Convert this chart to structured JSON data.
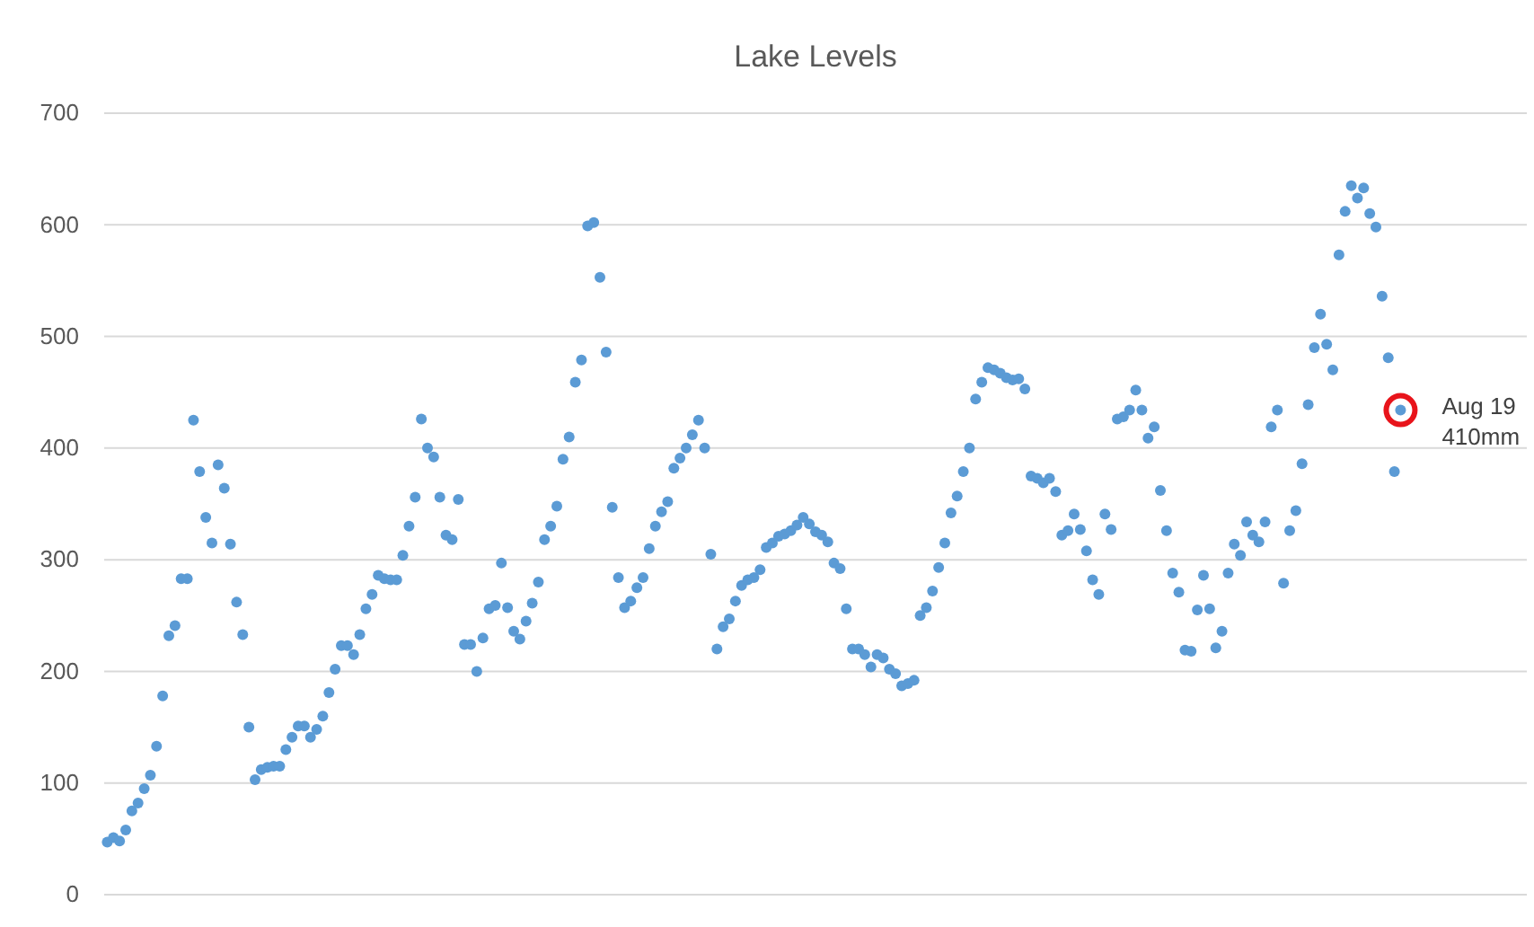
{
  "chart_data": {
    "type": "scatter",
    "title": "Lake Levels",
    "marker": "circle",
    "grid": "y",
    "tick_labels": "y",
    "categories": [
      null,
      null,
      null,
      null,
      null,
      null,
      null,
      null,
      null,
      null,
      null,
      null,
      null,
      null,
      null,
      null,
      null,
      null,
      null,
      null,
      null,
      null,
      null,
      null,
      null,
      null,
      null,
      null,
      null,
      null,
      null,
      null,
      null,
      null,
      null,
      null,
      null,
      null,
      null,
      null,
      null,
      null,
      null,
      null,
      null,
      null,
      null,
      null,
      null,
      null,
      null,
      null,
      null,
      null,
      null,
      null,
      null,
      null,
      null,
      null,
      null,
      null,
      null,
      null,
      null,
      null,
      null,
      null,
      null,
      null,
      null,
      null,
      null,
      null,
      null,
      null,
      null,
      null,
      null,
      null,
      null,
      null,
      null,
      null,
      null,
      null,
      null,
      null,
      null,
      null,
      null,
      null,
      null,
      null,
      null,
      null,
      null,
      null,
      null,
      null,
      null,
      null,
      null,
      null,
      null,
      null,
      null,
      null,
      null,
      null,
      null,
      null,
      null,
      null,
      null,
      null,
      null,
      null,
      null,
      null,
      null,
      null,
      null,
      null,
      null,
      null,
      null,
      null,
      null,
      null,
      null,
      null,
      null,
      null,
      null,
      null,
      null,
      null,
      null,
      null,
      null,
      null,
      null,
      null,
      null,
      null,
      null,
      null,
      null,
      null,
      null,
      null,
      null,
      null,
      null,
      null,
      null,
      null,
      null,
      null,
      null,
      null,
      null,
      null,
      null,
      null,
      null,
      null,
      null,
      null,
      null,
      null,
      null,
      null,
      null,
      null,
      null,
      null,
      null,
      null,
      null,
      null,
      null,
      null,
      null,
      null,
      null,
      null,
      null,
      null,
      null,
      null,
      null,
      null,
      null,
      null,
      null,
      null,
      null,
      null,
      null,
      null,
      null,
      null,
      null,
      null,
      null,
      null,
      null,
      null,
      null,
      null,
      null,
      null,
      null,
      null,
      null,
      null,
      null,
      null,
      null,
      null,
      null,
      null,
      null,
      null,
      null,
      null,
      null,
      null,
      null
    ],
    "ylim": [
      0,
      700
    ],
    "yticks": [
      0,
      100,
      200,
      300,
      400,
      500,
      600,
      700
    ],
    "annotations": [
      "Aug 19\n410mm"
    ],
    "series": [
      {
        "color": "#5b9bd5",
        "values": [
          47,
          51,
          48,
          58,
          75,
          82,
          95,
          107,
          133,
          178,
          232,
          241,
          283,
          283,
          425,
          379,
          338,
          315,
          385,
          364,
          314,
          262,
          233,
          150,
          103,
          112,
          114,
          115,
          115,
          130,
          141,
          151,
          151,
          141,
          148,
          160,
          181,
          202,
          223,
          223,
          215,
          233,
          256,
          269,
          286,
          283,
          282,
          282,
          304,
          330,
          356,
          426,
          400,
          392,
          356,
          322,
          318,
          354,
          224,
          224,
          200,
          230,
          256,
          259,
          297,
          257,
          236,
          229,
          245,
          261,
          280,
          318,
          330,
          348,
          390,
          410,
          459,
          479,
          599,
          602,
          553,
          486,
          347,
          284,
          257,
          263,
          275,
          284,
          310,
          330,
          343,
          352,
          382,
          391,
          400,
          412,
          425,
          400,
          305,
          220,
          240,
          247,
          263,
          277,
          282,
          284,
          291,
          311,
          315,
          321,
          323,
          326,
          331,
          338,
          332,
          325,
          322,
          316,
          297,
          292,
          256,
          220,
          220,
          215,
          204,
          215,
          212,
          202,
          198,
          187,
          189,
          192,
          250,
          257,
          272,
          293,
          315,
          342,
          357,
          379,
          400,
          444,
          459,
          472,
          470,
          467,
          463,
          461,
          462,
          453,
          375,
          373,
          369,
          373,
          361,
          322,
          326,
          341,
          327,
          308,
          282,
          269,
          341,
          327,
          426,
          428,
          434,
          452,
          434,
          409,
          419,
          362,
          326,
          288,
          271,
          219,
          218,
          255,
          286,
          256,
          221,
          236,
          288,
          314,
          304,
          334,
          322,
          316,
          334,
          419,
          434,
          279,
          326,
          344,
          386,
          439,
          490,
          520,
          493,
          470,
          573,
          612,
          635,
          624,
          633,
          610,
          598,
          536,
          481,
          379,
          434,
          null,
          null,
          null,
          null,
          null,
          null,
          null,
          null,
          null,
          null,
          null,
          null,
          null,
          null,
          null,
          null,
          null,
          null,
          null,
          null
        ]
      }
    ]
  }
}
